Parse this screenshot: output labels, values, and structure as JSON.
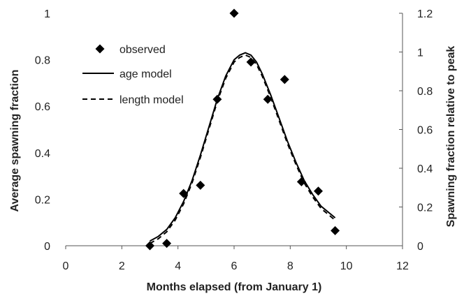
{
  "chart_data": {
    "type": "scatter",
    "title": "",
    "xlabel": "Months elapsed (from January 1)",
    "ylabel": "Average spawning fraction",
    "y2label": "Spawning fraction relative to peak",
    "xlim": [
      0,
      12
    ],
    "ylim": [
      0,
      1
    ],
    "y2lim": [
      0,
      1.2
    ],
    "xticks": [
      0,
      2,
      4,
      6,
      8,
      10,
      12
    ],
    "yticks": [
      0,
      0.2,
      0.4,
      0.6,
      0.8,
      1
    ],
    "y2ticks": [
      0,
      0.2,
      0.4,
      0.6,
      0.8,
      1,
      1.2
    ],
    "grid": false,
    "legend_position": "top-left",
    "series": [
      {
        "name": "observed",
        "style": "diamond-markers",
        "color": "#000000",
        "x": [
          3.0,
          3.6,
          4.2,
          4.8,
          5.4,
          6.0,
          6.6,
          7.2,
          7.8,
          8.4,
          9.0,
          9.6
        ],
        "y": [
          0.0,
          0.01,
          0.225,
          0.26,
          0.63,
          1.0,
          0.79,
          0.63,
          0.715,
          0.275,
          0.235,
          0.065
        ]
      },
      {
        "name": "age model",
        "style": "solid-line",
        "color": "#000000",
        "x": [
          3.0,
          3.3,
          3.6,
          3.9,
          4.2,
          4.5,
          4.8,
          5.1,
          5.4,
          5.7,
          6.0,
          6.2,
          6.4,
          6.6,
          6.8,
          7.0,
          7.3,
          7.6,
          7.9,
          8.2,
          8.5,
          8.8,
          9.1,
          9.4,
          9.6
        ],
        "y": [
          0.02,
          0.04,
          0.07,
          0.12,
          0.19,
          0.28,
          0.39,
          0.51,
          0.63,
          0.73,
          0.8,
          0.82,
          0.83,
          0.82,
          0.79,
          0.74,
          0.65,
          0.55,
          0.45,
          0.36,
          0.28,
          0.22,
          0.17,
          0.14,
          0.12
        ]
      },
      {
        "name": "length model",
        "style": "dashed-line",
        "color": "#000000",
        "x": [
          3.0,
          3.3,
          3.6,
          3.9,
          4.2,
          4.5,
          4.8,
          5.1,
          5.4,
          5.7,
          6.0,
          6.2,
          6.4,
          6.6,
          6.8,
          7.0,
          7.3,
          7.6,
          7.9,
          8.2,
          8.5,
          8.8,
          9.1,
          9.4,
          9.6
        ],
        "y": [
          0.01,
          0.03,
          0.06,
          0.11,
          0.18,
          0.27,
          0.38,
          0.5,
          0.62,
          0.72,
          0.79,
          0.81,
          0.82,
          0.81,
          0.78,
          0.73,
          0.64,
          0.54,
          0.44,
          0.35,
          0.27,
          0.21,
          0.16,
          0.13,
          0.11
        ]
      }
    ]
  }
}
